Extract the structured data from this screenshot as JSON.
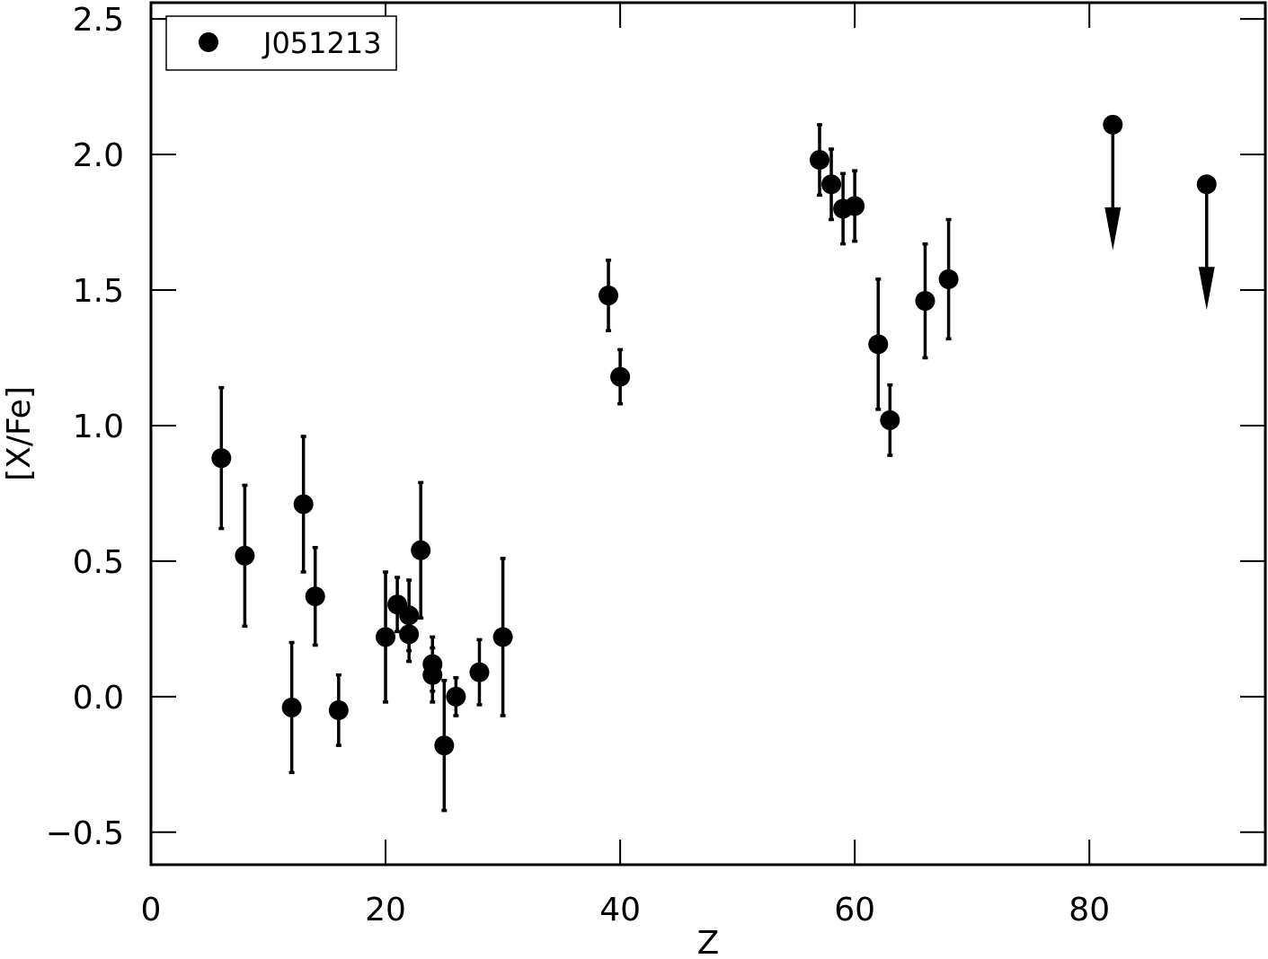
{
  "chart_data": {
    "type": "scatter",
    "xlabel": "Z",
    "ylabel": "[X/Fe]",
    "xlim": [
      0,
      95
    ],
    "ylim": [
      -0.62,
      2.56
    ],
    "xticks": [
      0,
      20,
      40,
      60,
      80
    ],
    "yticks": [
      {
        "value": -0.5,
        "label": "−0.5"
      },
      {
        "value": 0,
        "label": "0.0"
      },
      0.5,
      {
        "value": 1,
        "label": "1.0"
      },
      1.5,
      {
        "value": 2,
        "label": "2.0"
      },
      2.5
    ],
    "legend": "upper left",
    "series": [
      {
        "name": "J051213",
        "color": "#000000",
        "x": [
          6,
          8,
          12,
          13,
          14,
          16,
          20,
          21,
          22,
          22,
          23,
          24,
          24,
          25,
          26,
          28,
          30,
          39,
          40,
          57,
          58,
          59,
          60,
          62,
          63,
          66,
          68,
          82,
          90
        ],
        "values": [
          0.88,
          0.52,
          -0.04,
          0.71,
          0.37,
          -0.05,
          0.22,
          0.34,
          0.3,
          0.23,
          0.54,
          0.12,
          0.08,
          -0.18,
          0.0,
          0.09,
          0.22,
          1.48,
          1.18,
          1.98,
          1.89,
          1.8,
          1.81,
          1.3,
          1.02,
          1.46,
          1.54,
          2.11,
          1.89
        ],
        "errors": [
          0.26,
          0.26,
          0.24,
          0.25,
          0.18,
          0.13,
          0.24,
          0.1,
          0.13,
          0.1,
          0.25,
          0.1,
          0.1,
          0.24,
          0.07,
          0.12,
          0.29,
          0.13,
          0.1,
          0.13,
          0.13,
          0.13,
          0.13,
          0.24,
          0.13,
          0.21,
          0.22,
          null,
          null
        ],
        "upper_limits": [
          false,
          false,
          false,
          false,
          false,
          false,
          false,
          false,
          false,
          false,
          false,
          false,
          false,
          false,
          false,
          false,
          false,
          false,
          false,
          false,
          false,
          false,
          false,
          false,
          false,
          false,
          false,
          true,
          true
        ]
      }
    ]
  }
}
